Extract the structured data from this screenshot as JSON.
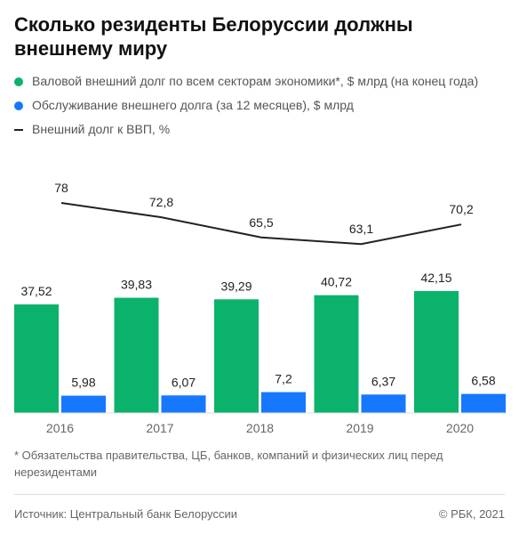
{
  "title": "Сколько резиденты Белоруссии должны внешнему миру",
  "legend": {
    "gross": "Валовой внешний долг по всем секторам экономики*, $ млрд (на конец года)",
    "service": "Обслуживание внешнего долга (за 12 месяцев), $ млрд",
    "ratio": "Внешний долг к ВВП, %"
  },
  "colors": {
    "green": "#0bb26b",
    "blue": "#1677ff",
    "line": "#222222"
  },
  "chart_data": {
    "type": "bar",
    "categories": [
      "2016",
      "2017",
      "2018",
      "2019",
      "2020"
    ],
    "series": [
      {
        "name": "Валовой внешний долг по всем секторам экономики*, $ млрд (на конец года)",
        "values": [
          37.52,
          39.83,
          39.29,
          40.72,
          42.15
        ],
        "labels": [
          "37,52",
          "39,83",
          "39,29",
          "40,72",
          "42,15"
        ]
      },
      {
        "name": "Обслуживание внешнего долга (за 12 месяцев), $ млрд",
        "values": [
          5.98,
          6.07,
          7.2,
          6.37,
          6.58
        ],
        "labels": [
          "5,98",
          "6,07",
          "7,2",
          "6,37",
          "6,58"
        ]
      },
      {
        "name": "Внешний долг к ВВП, %",
        "type": "line",
        "values": [
          78,
          72.8,
          65.5,
          63.1,
          70.2
        ],
        "labels": [
          "78",
          "72,8",
          "65,5",
          "63,1",
          "70,2"
        ]
      }
    ]
  },
  "footnote": "* Обязательства правительства, ЦБ, банков, компаний и физических лиц перед нерезидентами",
  "source": "Источник: Центральный банк Белоруссии",
  "copyright": "© РБК, 2021"
}
